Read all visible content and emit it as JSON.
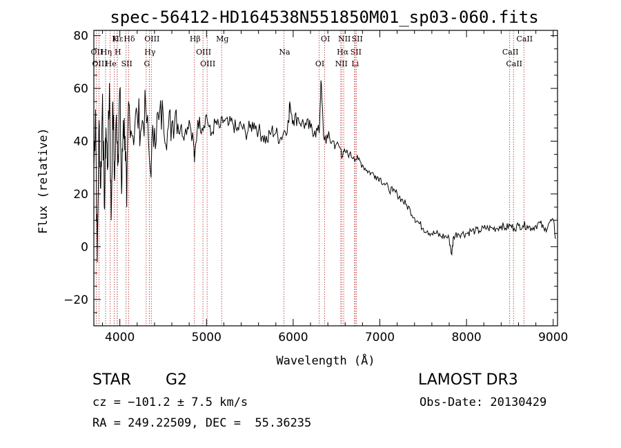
{
  "chart_data": {
    "type": "line",
    "title": "spec-56412-HD164538N551850M01_sp03-060.fits",
    "xlabel": "Wavelength (Å)",
    "ylabel": "Flux (relative)",
    "xlim": [
      3700,
      9050
    ],
    "ylim": [
      -30,
      82
    ],
    "xticks": [
      4000,
      5000,
      6000,
      7000,
      8000,
      9000
    ],
    "xtick_labels": [
      "4000",
      "5000",
      "6000",
      "7000",
      "8000",
      "9000"
    ],
    "yticks": [
      -20,
      0,
      20,
      40,
      60,
      80
    ],
    "ytick_labels": [
      "−20",
      "0",
      "20",
      "40",
      "60",
      "80"
    ],
    "grid": false,
    "series": [
      {
        "name": "spectrum",
        "x": [
          3700,
          3720,
          3740,
          3760,
          3780,
          3800,
          3820,
          3840,
          3860,
          3880,
          3900,
          3920,
          3940,
          3960,
          3980,
          4000,
          4020,
          4040,
          4060,
          4080,
          4100,
          4150,
          4200,
          4250,
          4300,
          4350,
          4400,
          4450,
          4500,
          4550,
          4600,
          4650,
          4700,
          4750,
          4800,
          4850,
          4861,
          4900,
          4950,
          5000,
          5050,
          5100,
          5150,
          5200,
          5250,
          5300,
          5350,
          5400,
          5450,
          5500,
          5550,
          5600,
          5650,
          5700,
          5750,
          5800,
          5850,
          5900,
          5950,
          5960,
          6000,
          6050,
          6100,
          6150,
          6200,
          6250,
          6300,
          6320,
          6350,
          6400,
          6450,
          6500,
          6550,
          6563,
          6600,
          6650,
          6700,
          6750,
          6800,
          6850,
          6900,
          6950,
          7000,
          7050,
          7100,
          7150,
          7200,
          7250,
          7300,
          7350,
          7400,
          7450,
          7500,
          7550,
          7600,
          7650,
          7700,
          7750,
          7800,
          7830,
          7850,
          7900,
          7950,
          8000,
          8050,
          8100,
          8150,
          8200,
          8250,
          8300,
          8350,
          8400,
          8450,
          8500,
          8550,
          8600,
          8650,
          8700,
          8750,
          8800,
          8850,
          8900,
          8950,
          9000,
          9030
        ],
        "y": [
          30,
          52,
          -6,
          48,
          22,
          58,
          15,
          45,
          30,
          62,
          10,
          55,
          25,
          50,
          35,
          60,
          20,
          48,
          42,
          15,
          55,
          42,
          50,
          45,
          52,
          30,
          45,
          48,
          50,
          44,
          47,
          52,
          45,
          43,
          48,
          40,
          32,
          48,
          45,
          50,
          42,
          47,
          45,
          48,
          46,
          47,
          44,
          46,
          43,
          45,
          47,
          44,
          42,
          40,
          44,
          43,
          41,
          44,
          47,
          55,
          48,
          49,
          47,
          46,
          45,
          44,
          43,
          63,
          42,
          41,
          40,
          39,
          37,
          34,
          36,
          35,
          34,
          33,
          31,
          29,
          28,
          27,
          26,
          24,
          22,
          21,
          20,
          18,
          16,
          14,
          11,
          9,
          7,
          6,
          5,
          5,
          4,
          4,
          3,
          -3,
          4,
          5,
          5,
          5,
          6,
          6,
          6,
          7,
          7,
          7,
          7,
          8,
          7,
          8,
          7,
          8,
          8,
          8,
          7,
          8,
          9,
          6,
          9,
          10,
          3
        ]
      }
    ],
    "lines": [
      {
        "label": "Hδ",
        "x": 4102
      },
      {
        "label": "OII",
        "x": 3727
      },
      {
        "label": "OIII",
        "x": 3760
      },
      {
        "label": "Hε",
        "x": 3970
      },
      {
        "label": "Hη",
        "x": 3835
      },
      {
        "label": "He",
        "x": 3889
      },
      {
        "label": "K",
        "x": 3934
      },
      {
        "label": "H",
        "x": 3969
      },
      {
        "label": "SII",
        "x": 4072
      },
      {
        "label": "OIII",
        "x": 4363
      },
      {
        "label": "Hγ",
        "x": 4340
      },
      {
        "label": "G",
        "x": 4304
      },
      {
        "label": "Hβ",
        "x": 4861
      },
      {
        "label": "OIII",
        "x": 4959
      },
      {
        "label": "OIII",
        "x": 5007
      },
      {
        "label": "Mg",
        "x": 5175
      },
      {
        "label": "Na",
        "x": 5893
      },
      {
        "label": "OI",
        "x": 6300
      },
      {
        "label": "OI",
        "x": 6364
      },
      {
        "label": "Hα",
        "x": 6563
      },
      {
        "label": "NII",
        "x": 6548
      },
      {
        "label": "NII",
        "x": 6583
      },
      {
        "label": "SII",
        "x": 6716
      },
      {
        "label": "Li",
        "x": 6708
      },
      {
        "label": "SII",
        "x": 6731
      },
      {
        "label": "CaII",
        "x": 8498
      },
      {
        "label": "CaII",
        "x": 8542
      },
      {
        "label": "CaII",
        "x": 8662
      }
    ]
  },
  "info": {
    "class_label": "STAR",
    "subclass": "G2",
    "redshift": "cz = −101.2 ± 7.5 km/s",
    "coords": "RA = 249.22509, DEC =  55.36235",
    "survey": "LAMOST DR3",
    "obs_date": "Obs-Date: 20130429"
  },
  "colors": {
    "spectrum": "#000000",
    "line_marker": "#b22222",
    "axes": "#000000"
  }
}
